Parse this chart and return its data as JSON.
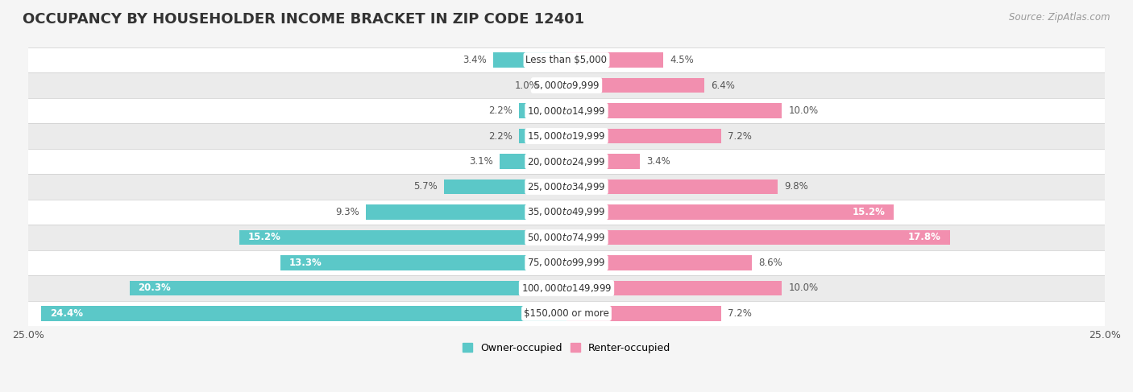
{
  "title": "OCCUPANCY BY HOUSEHOLDER INCOME BRACKET IN ZIP CODE 12401",
  "source": "Source: ZipAtlas.com",
  "categories": [
    "Less than $5,000",
    "$5,000 to $9,999",
    "$10,000 to $14,999",
    "$15,000 to $19,999",
    "$20,000 to $24,999",
    "$25,000 to $34,999",
    "$35,000 to $49,999",
    "$50,000 to $74,999",
    "$75,000 to $99,999",
    "$100,000 to $149,999",
    "$150,000 or more"
  ],
  "owner_values": [
    3.4,
    1.0,
    2.2,
    2.2,
    3.1,
    5.7,
    9.3,
    15.2,
    13.3,
    20.3,
    24.4
  ],
  "renter_values": [
    4.5,
    6.4,
    10.0,
    7.2,
    3.4,
    9.8,
    15.2,
    17.8,
    8.6,
    10.0,
    7.2
  ],
  "owner_color": "#5BC8C8",
  "renter_color": "#F28FAF",
  "bar_height": 0.58,
  "xlim": 25.0,
  "background_color": "#f5f5f5",
  "row_bg_odd": "#ffffff",
  "row_bg_even": "#ebebeb",
  "title_fontsize": 13,
  "label_fontsize": 8.5,
  "source_fontsize": 8.5,
  "legend_fontsize": 9,
  "axis_fontsize": 9,
  "owner_inside_threshold": 12.0,
  "renter_inside_threshold": 14.0
}
